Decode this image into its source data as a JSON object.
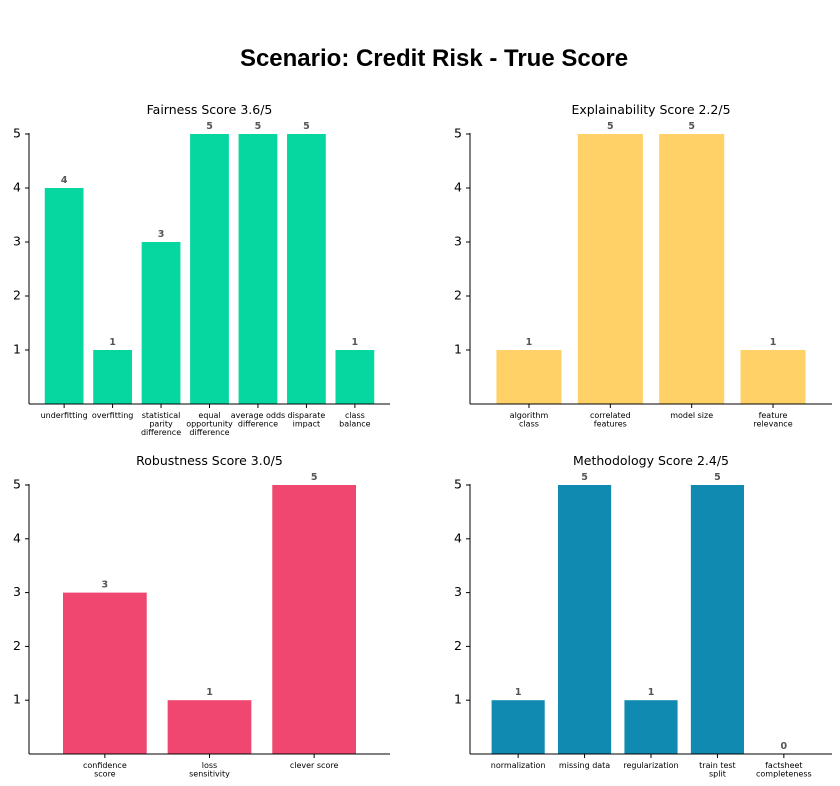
{
  "title": "Scenario: Credit Risk - True Score",
  "chart_data": [
    {
      "type": "bar",
      "title": "Fairness Score 3.6/5",
      "categories": [
        "underfitting",
        "overfitting",
        "statistical parity difference",
        "equal opportunity difference",
        "average odds difference",
        "disparate impact",
        "class balance"
      ],
      "values": [
        4,
        1,
        3,
        5,
        5,
        5,
        1
      ],
      "color": "#06d6a0",
      "ylim": [
        0,
        5
      ],
      "yticks": [
        1,
        2,
        3,
        4,
        5
      ],
      "grid": false
    },
    {
      "type": "bar",
      "title": "Explainability Score 2.2/5",
      "categories": [
        "algorithm class",
        "correlated features",
        "model size",
        "feature relevance"
      ],
      "values": [
        1,
        5,
        5,
        1
      ],
      "color": "#ffd166",
      "ylim": [
        0,
        5
      ],
      "yticks": [
        1,
        2,
        3,
        4,
        5
      ],
      "grid": false
    },
    {
      "type": "bar",
      "title": "Robustness Score 3.0/5",
      "categories": [
        "confidence score",
        "loss sensitivity",
        "clever score"
      ],
      "values": [
        3,
        1,
        5
      ],
      "color": "#ef476f",
      "ylim": [
        0,
        5
      ],
      "yticks": [
        1,
        2,
        3,
        4,
        5
      ],
      "grid": false
    },
    {
      "type": "bar",
      "title": "Methodology Score 2.4/5",
      "categories": [
        "normalization",
        "missing data",
        "regularization",
        "train test split",
        "factsheet completeness"
      ],
      "values": [
        1,
        5,
        1,
        5,
        0
      ],
      "color": "#118ab2",
      "ylim": [
        0,
        5
      ],
      "yticks": [
        1,
        2,
        3,
        4,
        5
      ],
      "grid": false
    }
  ]
}
